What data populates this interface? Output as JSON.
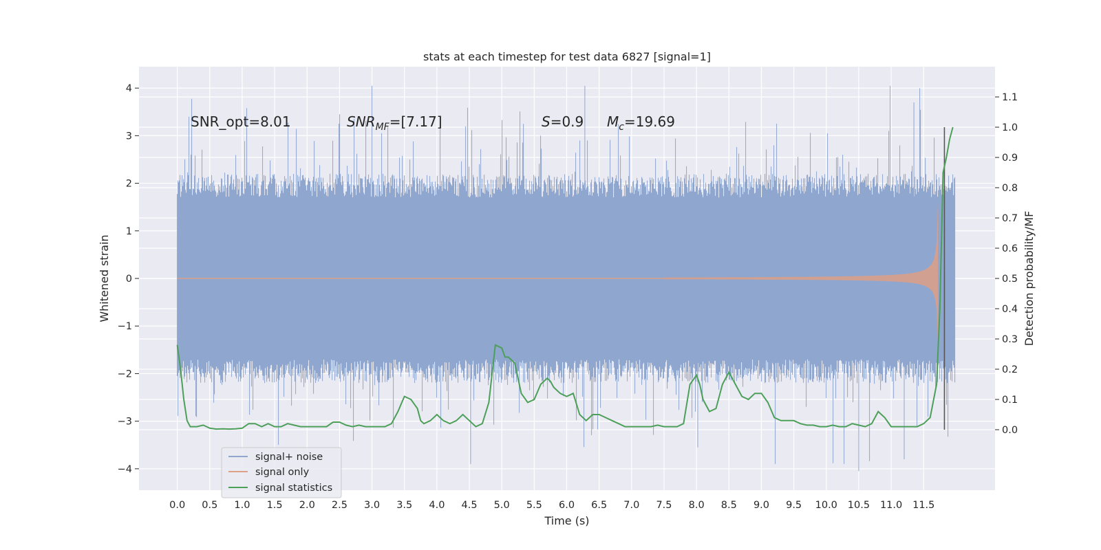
{
  "chart_data": {
    "type": "line",
    "title": "stats at each timestep for test data 6827 [signal=1]",
    "xlabel": "Time (s)",
    "ylabel_left": "Whitened strain",
    "ylabel_right": "Detection probability/MF",
    "xlim": [
      -0.59,
      12.6
    ],
    "ylim_left": [
      -4.45,
      4.45
    ],
    "ylim_right": [
      -0.2,
      1.2
    ],
    "xticks": [
      "0.0",
      "0.5",
      "1.0",
      "1.5",
      "2.0",
      "2.5",
      "3.0",
      "3.5",
      "4.0",
      "4.5",
      "5.0",
      "5.5",
      "6.0",
      "6.5",
      "7.0",
      "7.5",
      "8.0",
      "8.5",
      "9.0",
      "9.5",
      "10.0",
      "10.5",
      "11.0",
      "11.5"
    ],
    "yticks_left": [
      "4",
      "3",
      "2",
      "1",
      "0",
      "−1",
      "−2",
      "−3",
      "−4"
    ],
    "yticks_right": [
      "1.1",
      "1.0",
      "0.9",
      "0.8",
      "0.7",
      "0.6",
      "0.5",
      "0.4",
      "0.3",
      "0.2",
      "0.1",
      "0.0"
    ],
    "grid": true,
    "legend_position": "lower-left",
    "annotations": {
      "snr_opt": "SNR_opt=8.01",
      "snr_mf_base": "SNR",
      "snr_mf_sub": "MF",
      "snr_mf_val": "=[7.17]",
      "s_sym": "S",
      "s_val": "=0.9",
      "mc_sym": "M",
      "mc_sub": "c",
      "mc_val": "=19.69"
    },
    "noise": {
      "t_start": 0.0,
      "t_end": 11.98,
      "typical_abs_max": 2.0,
      "min": -3.9,
      "max": 4.05
    },
    "signal_only": {
      "t_start": 7.5,
      "t_peak": 11.72,
      "peak_amplitude": 1.6
    },
    "series": [
      {
        "name": "signal+ noise",
        "color": "#8fa6cf",
        "axis": "left"
      },
      {
        "name": "signal only",
        "color": "#dd9f86",
        "axis": "left"
      },
      {
        "name": "signal statistics",
        "color": "#4c9f58",
        "axis": "right",
        "x": [
          0.0,
          0.05,
          0.1,
          0.15,
          0.2,
          0.3,
          0.4,
          0.5,
          0.6,
          0.7,
          0.8,
          0.9,
          1.0,
          1.1,
          1.2,
          1.3,
          1.4,
          1.5,
          1.6,
          1.7,
          1.8,
          1.9,
          2.0,
          2.1,
          2.2,
          2.3,
          2.4,
          2.5,
          2.6,
          2.7,
          2.8,
          2.9,
          3.0,
          3.1,
          3.2,
          3.3,
          3.4,
          3.5,
          3.6,
          3.7,
          3.75,
          3.8,
          3.9,
          4.0,
          4.1,
          4.2,
          4.3,
          4.4,
          4.5,
          4.6,
          4.7,
          4.8,
          4.9,
          5.0,
          5.05,
          5.1,
          5.2,
          5.3,
          5.4,
          5.5,
          5.6,
          5.7,
          5.75,
          5.8,
          5.9,
          6.0,
          6.1,
          6.2,
          6.3,
          6.4,
          6.5,
          6.6,
          6.7,
          6.8,
          6.9,
          7.0,
          7.1,
          7.2,
          7.3,
          7.4,
          7.5,
          7.6,
          7.7,
          7.8,
          7.9,
          8.0,
          8.05,
          8.1,
          8.2,
          8.3,
          8.4,
          8.5,
          8.55,
          8.6,
          8.7,
          8.8,
          8.9,
          9.0,
          9.1,
          9.2,
          9.3,
          9.4,
          9.5,
          9.6,
          9.7,
          9.8,
          9.9,
          10.0,
          10.1,
          10.2,
          10.3,
          10.4,
          10.5,
          10.6,
          10.7,
          10.8,
          10.9,
          11.0,
          11.1,
          11.2,
          11.3,
          11.4,
          11.5,
          11.6,
          11.7,
          11.75,
          11.8,
          11.85,
          11.9,
          11.95
        ],
        "values": [
          0.28,
          0.2,
          0.1,
          0.03,
          0.01,
          0.01,
          0.015,
          0.005,
          0.002,
          0.003,
          0.002,
          0.003,
          0.005,
          0.02,
          0.02,
          0.01,
          0.02,
          0.01,
          0.01,
          0.02,
          0.015,
          0.01,
          0.01,
          0.01,
          0.01,
          0.01,
          0.025,
          0.025,
          0.015,
          0.01,
          0.015,
          0.01,
          0.01,
          0.01,
          0.01,
          0.02,
          0.06,
          0.11,
          0.1,
          0.07,
          0.03,
          0.02,
          0.03,
          0.05,
          0.03,
          0.02,
          0.03,
          0.05,
          0.03,
          0.01,
          0.02,
          0.09,
          0.28,
          0.27,
          0.24,
          0.24,
          0.22,
          0.12,
          0.09,
          0.1,
          0.15,
          0.17,
          0.16,
          0.14,
          0.12,
          0.11,
          0.12,
          0.05,
          0.03,
          0.05,
          0.05,
          0.04,
          0.03,
          0.02,
          0.01,
          0.01,
          0.01,
          0.01,
          0.01,
          0.015,
          0.01,
          0.01,
          0.01,
          0.02,
          0.15,
          0.18,
          0.15,
          0.1,
          0.06,
          0.07,
          0.15,
          0.19,
          0.17,
          0.15,
          0.11,
          0.1,
          0.12,
          0.12,
          0.09,
          0.04,
          0.03,
          0.03,
          0.03,
          0.02,
          0.015,
          0.015,
          0.01,
          0.01,
          0.015,
          0.01,
          0.01,
          0.02,
          0.015,
          0.01,
          0.02,
          0.06,
          0.04,
          0.01,
          0.01,
          0.01,
          0.01,
          0.01,
          0.02,
          0.04,
          0.15,
          0.4,
          0.85,
          0.9,
          0.96,
          1.0
        ]
      }
    ],
    "vertical_marker": {
      "x": 11.82,
      "y_top": 1.0,
      "y_bottom": 0.0,
      "color": "#555555"
    }
  }
}
